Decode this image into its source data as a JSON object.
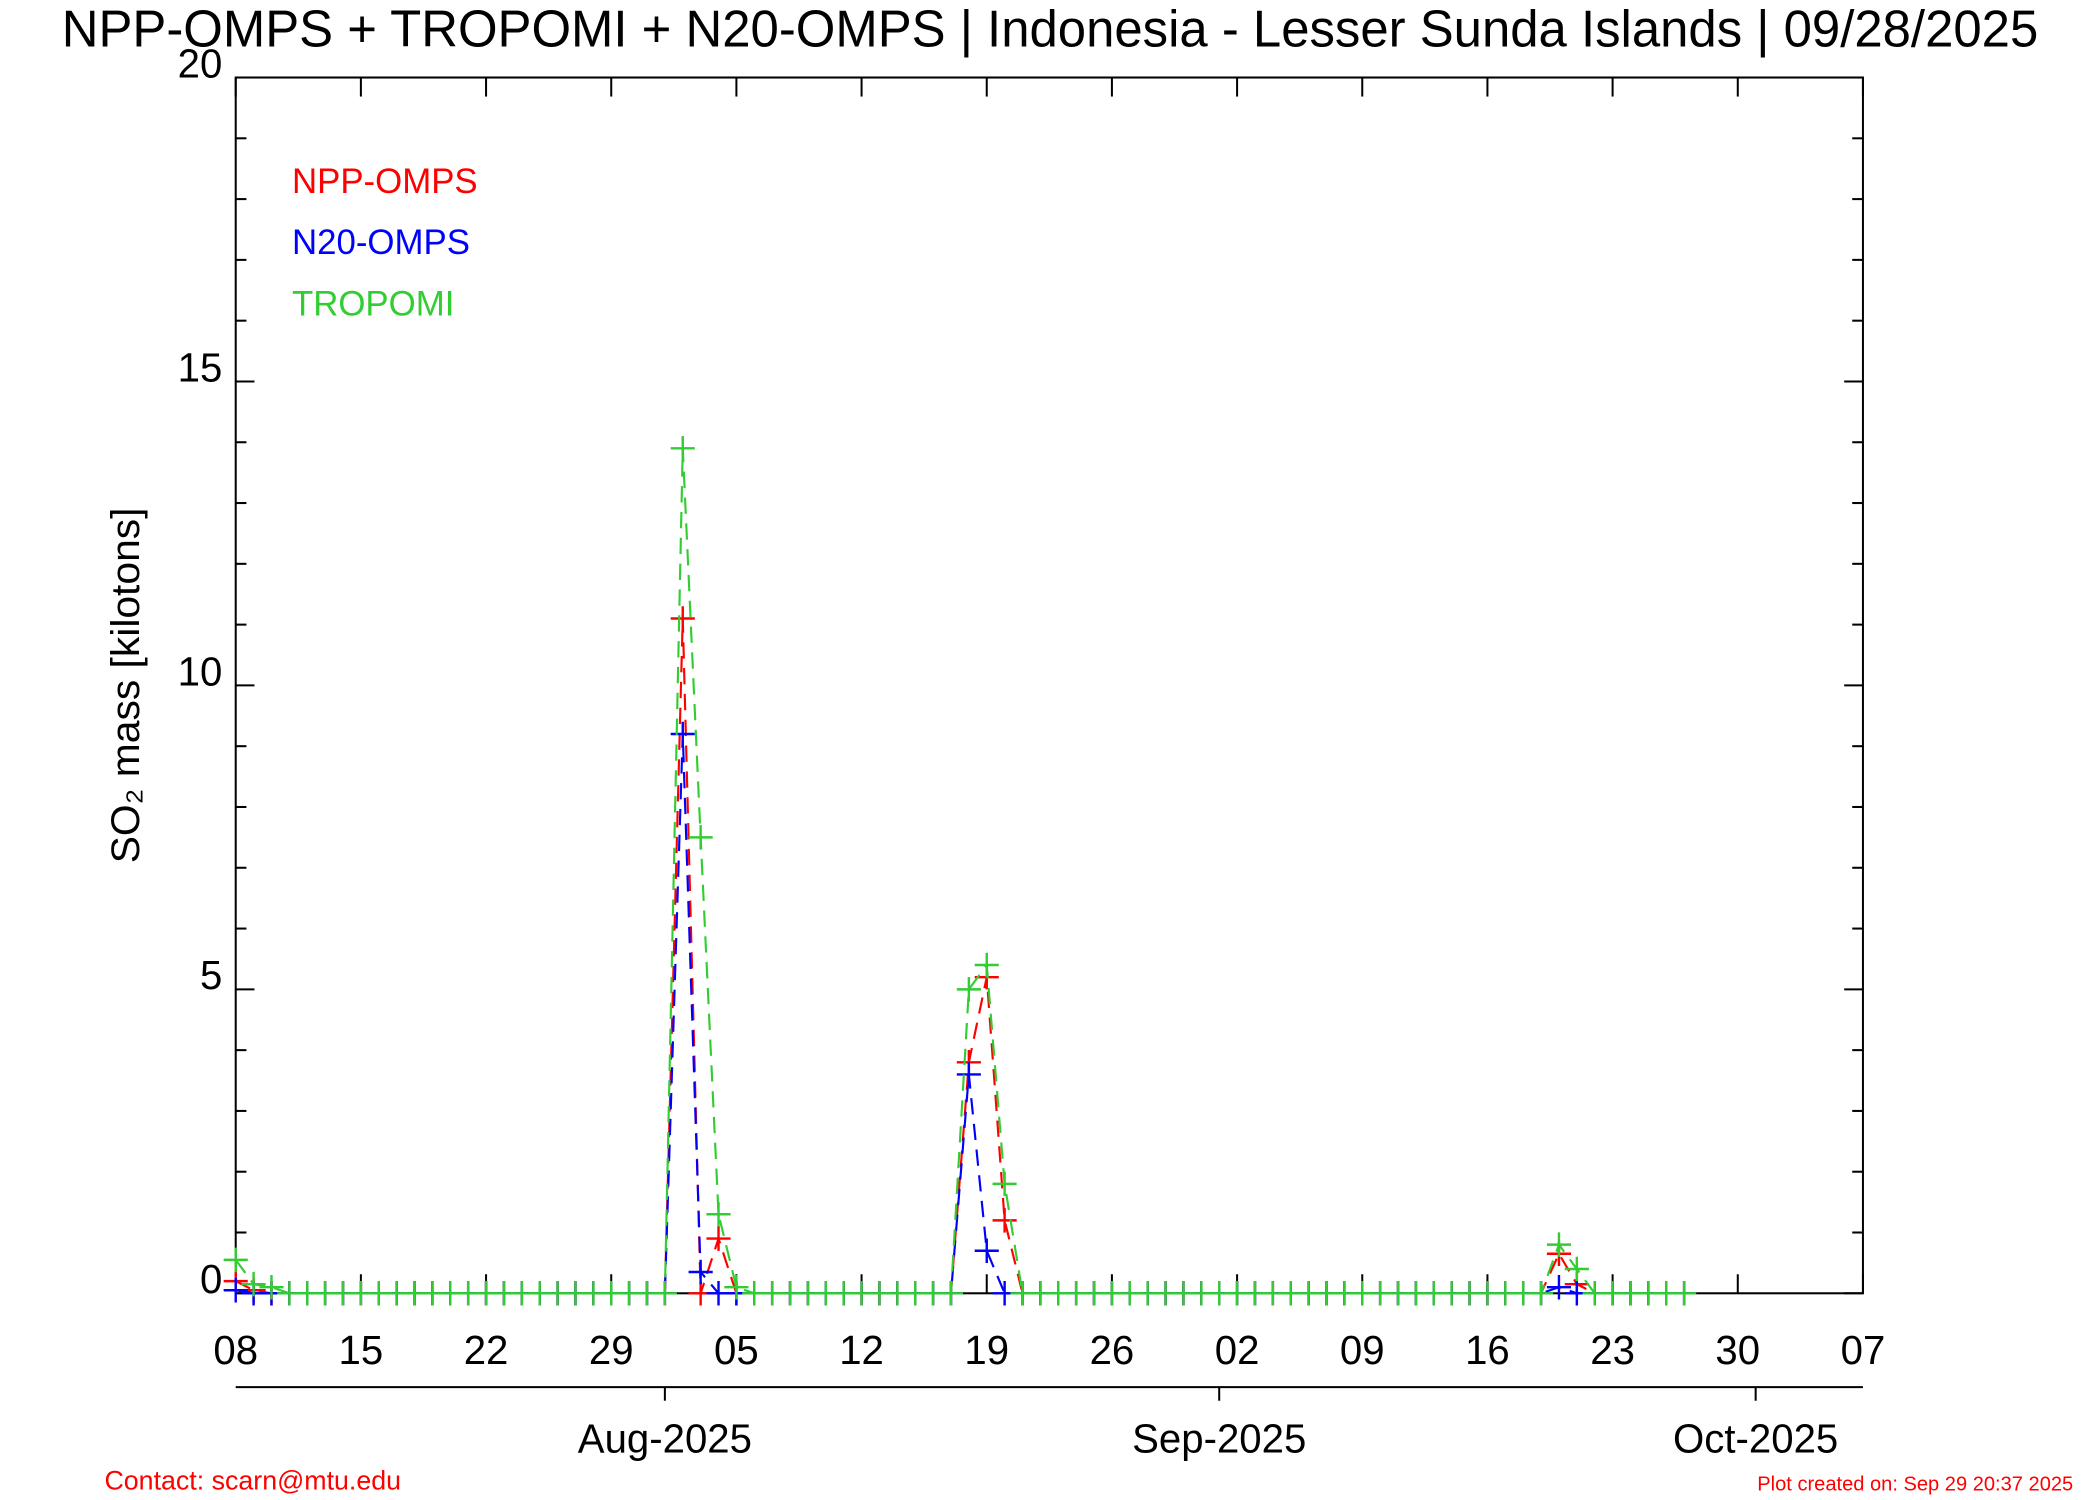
{
  "chart_data": {
    "type": "line",
    "title": "NPP-OMPS + TROPOMI + N20-OMPS | Indonesia - Lesser Sunda Islands | 09/28/2025",
    "ylabel": "SO₂ mass [kilotons]",
    "footer_left": "Contact: scarn@mtu.edu",
    "footer_right": "Plot created on: Sep 29 20:37 2025",
    "x": [
      "2025-07-08",
      "2025-07-09",
      "2025-07-10",
      "2025-07-11",
      "2025-07-12",
      "2025-07-13",
      "2025-07-14",
      "2025-07-15",
      "2025-07-16",
      "2025-07-17",
      "2025-07-18",
      "2025-07-19",
      "2025-07-20",
      "2025-07-21",
      "2025-07-22",
      "2025-07-23",
      "2025-07-24",
      "2025-07-25",
      "2025-07-26",
      "2025-07-27",
      "2025-07-28",
      "2025-07-29",
      "2025-07-30",
      "2025-07-31",
      "2025-08-01",
      "2025-08-02",
      "2025-08-03",
      "2025-08-04",
      "2025-08-05",
      "2025-08-06",
      "2025-08-07",
      "2025-08-08",
      "2025-08-09",
      "2025-08-10",
      "2025-08-11",
      "2025-08-12",
      "2025-08-13",
      "2025-08-14",
      "2025-08-15",
      "2025-08-16",
      "2025-08-17",
      "2025-08-18",
      "2025-08-19",
      "2025-08-20",
      "2025-08-21",
      "2025-08-22",
      "2025-08-23",
      "2025-08-24",
      "2025-08-25",
      "2025-08-26",
      "2025-08-27",
      "2025-08-28",
      "2025-08-29",
      "2025-08-30",
      "2025-08-31",
      "2025-09-01",
      "2025-09-02",
      "2025-09-03",
      "2025-09-04",
      "2025-09-05",
      "2025-09-06",
      "2025-09-07",
      "2025-09-08",
      "2025-09-09",
      "2025-09-10",
      "2025-09-11",
      "2025-09-12",
      "2025-09-13",
      "2025-09-14",
      "2025-09-15",
      "2025-09-16",
      "2025-09-17",
      "2025-09-18",
      "2025-09-19",
      "2025-09-20",
      "2025-09-21",
      "2025-09-22",
      "2025-09-23",
      "2025-09-24",
      "2025-09-25",
      "2025-09-26",
      "2025-09-27"
    ],
    "series": [
      {
        "name": "NPP-OMPS",
        "color": "#ff0000",
        "values": [
          0.2,
          0.05,
          0,
          0,
          0,
          0,
          0,
          0,
          0,
          0,
          0,
          0,
          0,
          0,
          0,
          0,
          0,
          0,
          0,
          0,
          0,
          0,
          0,
          0,
          0,
          11.1,
          0,
          0.9,
          0,
          0,
          0,
          0,
          0,
          0,
          0,
          0,
          0,
          0,
          0,
          0,
          0,
          3.8,
          5.2,
          1.2,
          0,
          0,
          0,
          0,
          0,
          0,
          0,
          0,
          0,
          0,
          0,
          0,
          0,
          0,
          0,
          0,
          0,
          0,
          0,
          0,
          0,
          0,
          0,
          0,
          0,
          0,
          0,
          0,
          0,
          0,
          0.65,
          0.15,
          0,
          0,
          0,
          0,
          0,
          0
        ]
      },
      {
        "name": "N20-OMPS",
        "color": "#0000ff",
        "values": [
          0.05,
          0,
          0,
          0,
          0,
          0,
          0,
          0,
          0,
          0,
          0,
          0,
          0,
          0,
          0,
          0,
          0,
          0,
          0,
          0,
          0,
          0,
          0,
          0,
          0,
          9.2,
          0.35,
          0,
          0,
          0,
          0,
          0,
          0,
          0,
          0,
          0,
          0,
          0,
          0,
          0,
          0,
          3.6,
          0.7,
          0,
          0,
          0,
          0,
          0,
          0,
          0,
          0,
          0,
          0,
          0,
          0,
          0,
          0,
          0,
          0,
          0,
          0,
          0,
          0,
          0,
          0,
          0,
          0,
          0,
          0,
          0,
          0,
          0,
          0,
          0,
          0.1,
          0,
          0,
          0,
          0,
          0,
          0,
          0
        ]
      },
      {
        "name": "TROPOMI",
        "color": "#32cd32",
        "values": [
          0.55,
          0.15,
          0.1,
          0,
          0,
          0,
          0,
          0,
          0,
          0,
          0,
          0,
          0,
          0,
          0,
          0,
          0,
          0,
          0,
          0,
          0,
          0,
          0,
          0,
          0,
          13.9,
          7.5,
          1.3,
          0.1,
          0,
          0,
          0,
          0,
          0,
          0,
          0,
          0,
          0,
          0,
          0,
          0,
          5.0,
          5.4,
          1.8,
          0,
          0,
          0,
          0,
          0,
          0,
          0,
          0,
          0,
          0,
          0,
          0,
          0,
          0,
          0,
          0,
          0,
          0,
          0,
          0,
          0,
          0,
          0,
          0,
          0,
          0,
          0,
          0,
          0,
          0,
          0.8,
          0.4,
          0,
          0,
          0,
          0,
          0,
          0
        ]
      }
    ],
    "xlim": [
      "2025-07-08",
      "2025-10-07"
    ],
    "xticks": [
      {
        "value": "2025-07-08",
        "label": "08"
      },
      {
        "value": "2025-07-15",
        "label": "15"
      },
      {
        "value": "2025-07-22",
        "label": "22"
      },
      {
        "value": "2025-07-29",
        "label": "29"
      },
      {
        "value": "2025-08-05",
        "label": "05"
      },
      {
        "value": "2025-08-12",
        "label": "12"
      },
      {
        "value": "2025-08-19",
        "label": "19"
      },
      {
        "value": "2025-08-26",
        "label": "26"
      },
      {
        "value": "2025-09-02",
        "label": "02"
      },
      {
        "value": "2025-09-09",
        "label": "09"
      },
      {
        "value": "2025-09-16",
        "label": "16"
      },
      {
        "value": "2025-09-23",
        "label": "23"
      },
      {
        "value": "2025-09-30",
        "label": "30"
      },
      {
        "value": "2025-10-07",
        "label": "07"
      }
    ],
    "month_ticks": [
      {
        "value": "2025-08-01",
        "label": "Aug-2025"
      },
      {
        "value": "2025-09-01",
        "label": "Sep-2025"
      },
      {
        "value": "2025-10-01",
        "label": "Oct-2025"
      }
    ],
    "ylim": [
      0,
      20
    ],
    "yticks": [
      0,
      5,
      10,
      15,
      20
    ],
    "legend": "upper-left",
    "grid": false
  }
}
